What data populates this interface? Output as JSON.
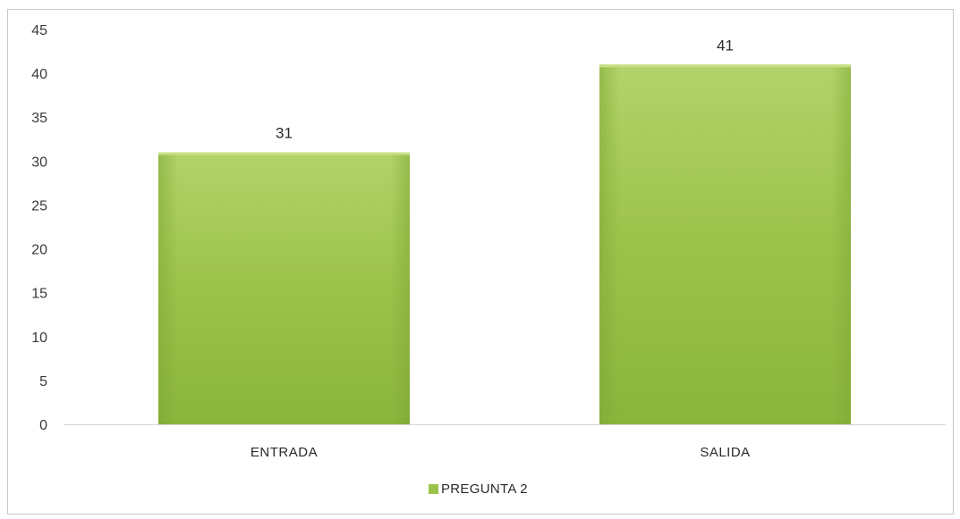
{
  "chart_data": {
    "type": "bar",
    "categories": [
      "ENTRADA",
      "SALIDA"
    ],
    "series": [
      {
        "name": "PREGUNTA 2",
        "values": [
          31,
          41
        ],
        "color": "#9cc24a"
      }
    ],
    "title": "",
    "xlabel": "",
    "ylabel": "",
    "ylim": [
      0,
      45
    ],
    "yticks": [
      0,
      5,
      10,
      15,
      20,
      25,
      30,
      35,
      40,
      45
    ],
    "data_labels": [
      "31",
      "41"
    ],
    "grid": false,
    "legend": {
      "position": "bottom",
      "entries": [
        "PREGUNTA 2"
      ]
    }
  }
}
